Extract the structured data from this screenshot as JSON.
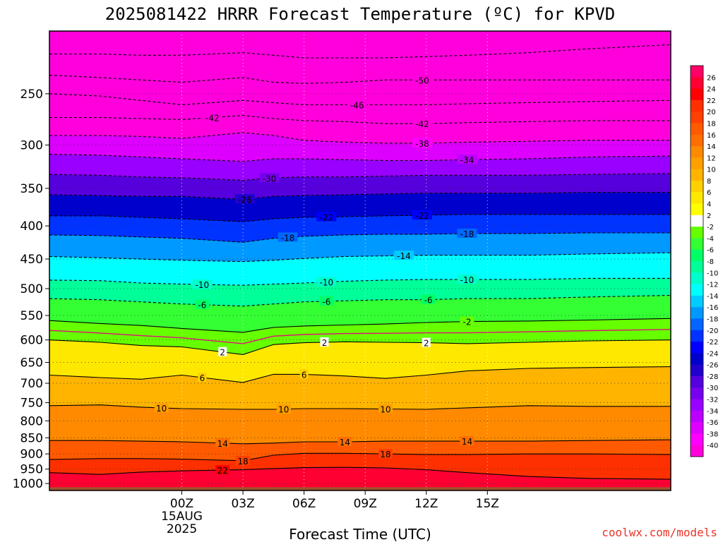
{
  "chart_data": {
    "type": "heatmap",
    "title": "2025081422 HRRR Forecast Temperature (ºC) for KPVD",
    "xlabel": "Forecast Time (UTC)",
    "ylabel": "",
    "x_range_hours": [
      -6.5,
      24.0
    ],
    "y_range_hPa": [
      1025,
      200
    ],
    "y_scale": "log-pressure",
    "x_ticks": [
      {
        "hour": 0,
        "label": "00Z",
        "sub": [
          "15AUG",
          "2025"
        ]
      },
      {
        "hour": 3,
        "label": "03Z"
      },
      {
        "hour": 6,
        "label": "06Z"
      },
      {
        "hour": 9,
        "label": "09Z"
      },
      {
        "hour": 12,
        "label": "12Z"
      },
      {
        "hour": 15,
        "label": "15Z"
      }
    ],
    "y_ticks": [
      250,
      300,
      350,
      400,
      450,
      500,
      550,
      600,
      650,
      700,
      750,
      800,
      850,
      900,
      950,
      1000
    ],
    "grid": true,
    "colorbar": {
      "placement": "right",
      "labels": [
        "26",
        "24",
        "22",
        "20",
        "18",
        "16",
        "14",
        "12",
        "10",
        "8",
        "6",
        "4",
        "2",
        "-2",
        "-4",
        "-6",
        "-8",
        "-10",
        "-12",
        "-14",
        "-16",
        "-18",
        "-20",
        "-22",
        "-24",
        "-26",
        "-28",
        "-30",
        "-32",
        "-34",
        "-36",
        "-38",
        "-40"
      ],
      "colors": [
        "#ff0066",
        "#ff0033",
        "#ff0000",
        "#ff3000",
        "#ff4000",
        "#ff5a00",
        "#ff6e00",
        "#ff8a00",
        "#ffa000",
        "#ffb400",
        "#ffd000",
        "#ffe800",
        "#ffff00",
        "#ffffff",
        "#66ff00",
        "#33ff33",
        "#00ff66",
        "#00ff99",
        "#00ffcc",
        "#00ffff",
        "#00ccff",
        "#0099ff",
        "#0066ff",
        "#0033ff",
        "#0000ff",
        "#0000cc",
        "#2200cc",
        "#5500dd",
        "#7700ee",
        "#9900ff",
        "#bb00ff",
        "#dd00ff",
        "#ff00ff",
        "#ff00dd"
      ]
    },
    "series": [
      {
        "temp": 22,
        "pressure": [
          962,
          968,
          960,
          956,
          952,
          948,
          945,
          944,
          946,
          952,
          962,
          975,
          982,
          985
        ]
      },
      {
        "temp": 18,
        "pressure": [
          918,
          915,
          915,
          917,
          922,
          904,
          898,
          898,
          900,
          902,
          902,
          900,
          900,
          902
        ]
      },
      {
        "temp": 14,
        "pressure": [
          858,
          858,
          860,
          862,
          868,
          866,
          862,
          862,
          860,
          860,
          860,
          860,
          858,
          856
        ]
      },
      {
        "temp": 10,
        "pressure": [
          758,
          756,
          762,
          766,
          768,
          768,
          766,
          766,
          767,
          768,
          764,
          758,
          760,
          760
        ]
      },
      {
        "temp": 6,
        "pressure": [
          680,
          686,
          690,
          680,
          698,
          678,
          678,
          682,
          688,
          680,
          670,
          664,
          662,
          660
        ]
      },
      {
        "temp": 2,
        "pressure": [
          600,
          605,
          612,
          615,
          632,
          610,
          606,
          604,
          605,
          606,
          608,
          605,
          602,
          600
        ]
      },
      {
        "temp": -2,
        "pressure": [
          560,
          566,
          570,
          576,
          584,
          574,
          571,
          569,
          567,
          564,
          562,
          561,
          559,
          556
        ]
      },
      {
        "temp": -6,
        "pressure": [
          518,
          520,
          524,
          528,
          532,
          528,
          524,
          522,
          520,
          520,
          518,
          518,
          515,
          512
        ]
      },
      {
        "temp": -10,
        "pressure": [
          485,
          486,
          490,
          492,
          494,
          492,
          490,
          487,
          485,
          484,
          484,
          484,
          482,
          482
        ]
      },
      {
        "temp": -14,
        "pressure": [
          446,
          448,
          450,
          452,
          454,
          452,
          449,
          446,
          445,
          444,
          444,
          444,
          442,
          440
        ]
      },
      {
        "temp": -18,
        "pressure": [
          413,
          414,
          416,
          418,
          424,
          418,
          415,
          413,
          412,
          412,
          411,
          411,
          410,
          410
        ]
      },
      {
        "temp": -22,
        "pressure": [
          386,
          386,
          388,
          390,
          394,
          390,
          388,
          387,
          386,
          385,
          384,
          384,
          384,
          384
        ]
      },
      {
        "temp": -26,
        "pressure": [
          358,
          359,
          360,
          360,
          364,
          360,
          359,
          358,
          357,
          356,
          356,
          356,
          355,
          355
        ]
      },
      {
        "temp": -30,
        "pressure": [
          333,
          334,
          336,
          337,
          340,
          337,
          336,
          336,
          335,
          334,
          334,
          334,
          333,
          332
        ]
      },
      {
        "temp": -34,
        "pressure": [
          310,
          311,
          313,
          315,
          318,
          315,
          315,
          316,
          317,
          317,
          316,
          315,
          313,
          312
        ]
      },
      {
        "temp": -38,
        "pressure": [
          290,
          290,
          291,
          293,
          287,
          290,
          295,
          297,
          298,
          298,
          297,
          296,
          295,
          295
        ]
      },
      {
        "temp": -42,
        "pressure": [
          272,
          272,
          273,
          274,
          270,
          273,
          275,
          276,
          278,
          278,
          277,
          276,
          275,
          275
        ]
      },
      {
        "temp": -46,
        "pressure": [
          250,
          252,
          256,
          260,
          256,
          258,
          260,
          260,
          260,
          260,
          259,
          258,
          257,
          256
        ]
      },
      {
        "temp": -50,
        "pressure": [
          234,
          236,
          238,
          240,
          236,
          240,
          241,
          240,
          238,
          238,
          238,
          238,
          238,
          238
        ]
      },
      {
        "temp": -54,
        "pressure": [
          217,
          217,
          218,
          218,
          216,
          218,
          220,
          220,
          220,
          219,
          218,
          216,
          213,
          210
        ]
      }
    ],
    "series_hours": [
      -6.5,
      -4,
      -2,
      0,
      3,
      4.5,
      6,
      8,
      10,
      12,
      14,
      17,
      20,
      24
    ],
    "contour_labels": [
      {
        "text": "-50",
        "hour": 11.8,
        "temp": -50
      },
      {
        "text": "-46",
        "hour": 8.6,
        "temp": -46
      },
      {
        "text": "-42",
        "hour": 1.5,
        "temp": -42
      },
      {
        "text": "-42",
        "hour": 11.8,
        "temp": -42
      },
      {
        "text": "-38",
        "hour": 11.8,
        "temp": -38
      },
      {
        "text": "-34",
        "hour": 14.0,
        "temp": -34
      },
      {
        "text": "-30",
        "hour": 4.3,
        "temp": -30
      },
      {
        "text": "-26",
        "hour": 3.1,
        "temp": -26
      },
      {
        "text": "-22",
        "hour": 7.1,
        "temp": -22
      },
      {
        "text": "-22",
        "hour": 11.8,
        "temp": -22
      },
      {
        "text": "-18",
        "hour": 5.2,
        "temp": -18
      },
      {
        "text": "-18",
        "hour": 14.0,
        "temp": -18
      },
      {
        "text": "-14",
        "hour": 10.9,
        "temp": -14
      },
      {
        "text": "-10",
        "hour": 1.0,
        "temp": -10
      },
      {
        "text": "-10",
        "hour": 7.1,
        "temp": -10
      },
      {
        "text": "-10",
        "hour": 14.0,
        "temp": -10
      },
      {
        "text": "-6",
        "hour": 1.0,
        "temp": -6
      },
      {
        "text": "-6",
        "hour": 7.1,
        "temp": -6
      },
      {
        "text": "-6",
        "hour": 12.1,
        "temp": -6
      },
      {
        "text": "-2",
        "hour": 14.0,
        "temp": -2
      },
      {
        "text": "2",
        "hour": 2.0,
        "temp": 2
      },
      {
        "text": "2",
        "hour": 7.0,
        "temp": 2
      },
      {
        "text": "2",
        "hour": 12.0,
        "temp": 2
      },
      {
        "text": "6",
        "hour": 1.0,
        "temp": 6
      },
      {
        "text": "6",
        "hour": 6.0,
        "temp": 6
      },
      {
        "text": "10",
        "hour": -1.0,
        "temp": 10
      },
      {
        "text": "10",
        "hour": 5.0,
        "temp": 10
      },
      {
        "text": "10",
        "hour": 10.0,
        "temp": 10
      },
      {
        "text": "14",
        "hour": 2.0,
        "temp": 14
      },
      {
        "text": "14",
        "hour": 8.0,
        "temp": 14
      },
      {
        "text": "14",
        "hour": 14.0,
        "temp": 14
      },
      {
        "text": "18",
        "hour": 3.0,
        "temp": 18
      },
      {
        "text": "18",
        "hour": 10.0,
        "temp": 18
      },
      {
        "text": "22",
        "hour": 2.0,
        "temp": 22
      }
    ],
    "surface_color": "#a0522d",
    "zero_line_color": "#e0107a"
  },
  "credit": "coolwx.com/models",
  "credit_color": "#e8352a"
}
